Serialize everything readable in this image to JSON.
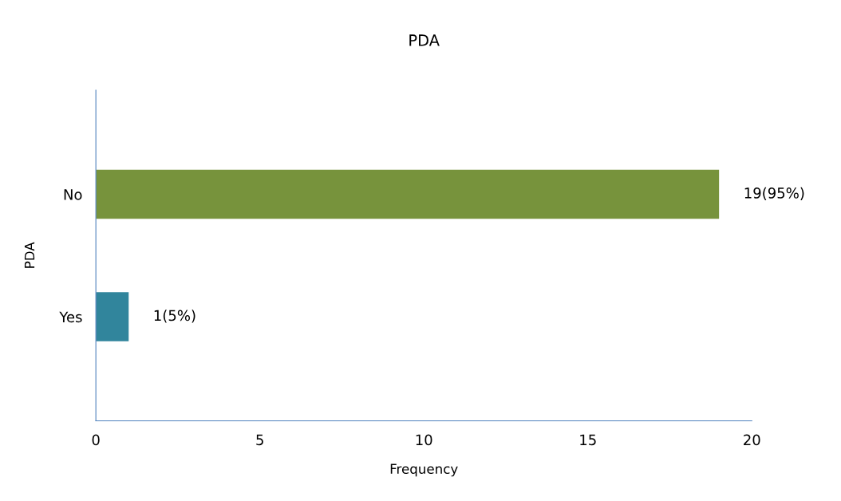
{
  "chart_data": {
    "type": "bar",
    "orientation": "horizontal",
    "title": "PDA",
    "xlabel": "Frequency",
    "ylabel": "PDA",
    "categories": [
      "No",
      "Yes"
    ],
    "values": [
      19,
      1
    ],
    "colors": [
      "#77933c",
      "#31859c"
    ],
    "value_labels": [
      "19(95%)",
      "1(5%)"
    ],
    "xlim": [
      0,
      20
    ],
    "xticks": [
      0,
      5,
      10,
      15,
      20
    ],
    "grid": false
  }
}
